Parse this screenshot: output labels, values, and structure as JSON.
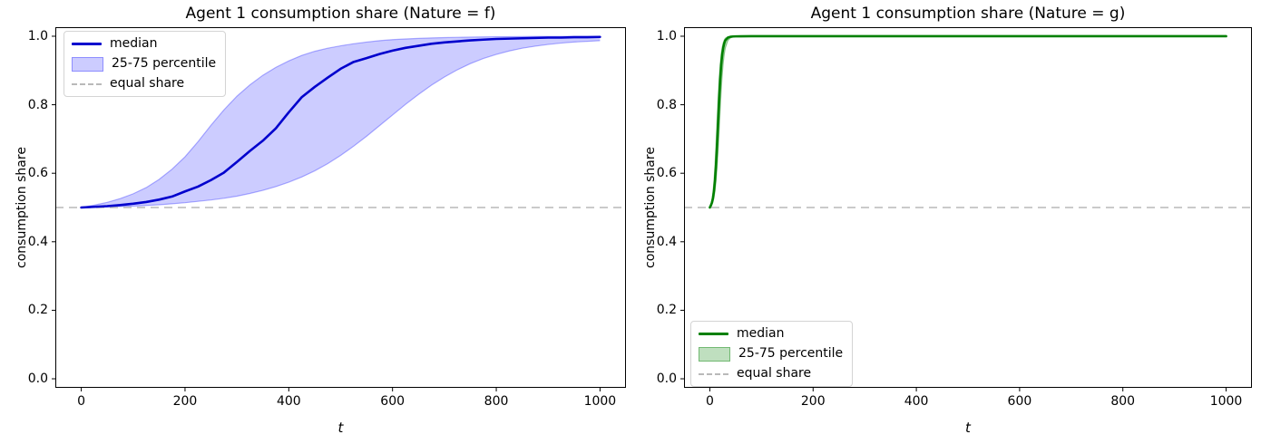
{
  "figure": {
    "background": "#ffffff"
  },
  "chart_data": [
    {
      "type": "line",
      "title": "Agent 1 consumption share (Nature = f)",
      "xlabel": "t",
      "ylabel": "consumption share",
      "xlim": [
        -50,
        1050
      ],
      "ylim": [
        -0.0264,
        1.0264
      ],
      "xticks": [
        0,
        200,
        400,
        600,
        800,
        1000
      ],
      "xtick_labels": [
        "0",
        "200",
        "400",
        "600",
        "800",
        "1000"
      ],
      "yticks": [
        0.0,
        0.2,
        0.4,
        0.6,
        0.8,
        1.0
      ],
      "ytick_labels": [
        "0.0",
        "0.2",
        "0.4",
        "0.6",
        "0.8",
        "1.0"
      ],
      "grid": false,
      "equal_share_value": 0.5,
      "legend": {
        "position": "upper-left",
        "entries": [
          {
            "label": "median",
            "type": "line"
          },
          {
            "label": "25-75 percentile",
            "type": "patch"
          },
          {
            "label": "equal share",
            "type": "dashed"
          }
        ]
      },
      "colors": {
        "median": "#0000cd",
        "band_fill": "rgba(0,0,255,0.2)",
        "band_edge": "rgba(0,0,255,0.3)",
        "equal_share": "#b9b9b9"
      },
      "series": {
        "t": [
          0,
          25,
          50,
          75,
          100,
          125,
          150,
          175,
          200,
          225,
          250,
          275,
          300,
          325,
          350,
          375,
          400,
          425,
          450,
          475,
          500,
          525,
          550,
          575,
          600,
          625,
          650,
          675,
          700,
          725,
          750,
          775,
          800,
          825,
          850,
          875,
          900,
          925,
          950,
          975,
          1000
        ],
        "median": [
          0.5,
          0.502,
          0.504,
          0.507,
          0.511,
          0.516,
          0.523,
          0.532,
          0.547,
          0.561,
          0.58,
          0.602,
          0.633,
          0.665,
          0.695,
          0.731,
          0.778,
          0.822,
          0.852,
          0.879,
          0.905,
          0.925,
          0.936,
          0.948,
          0.958,
          0.966,
          0.972,
          0.978,
          0.982,
          0.985,
          0.988,
          0.99,
          0.992,
          0.993,
          0.994,
          0.995,
          0.996,
          0.996,
          0.997,
          0.997,
          0.998
        ],
        "p75": [
          0.5,
          0.507,
          0.515,
          0.526,
          0.54,
          0.558,
          0.582,
          0.612,
          0.648,
          0.692,
          0.74,
          0.785,
          0.825,
          0.858,
          0.886,
          0.909,
          0.928,
          0.944,
          0.956,
          0.965,
          0.972,
          0.978,
          0.983,
          0.987,
          0.99,
          0.992,
          0.9937,
          0.995,
          0.996,
          0.9968,
          0.9975,
          0.998,
          0.9985,
          0.9988,
          0.999,
          0.9992,
          0.9994,
          0.9995,
          0.9996,
          0.9997,
          0.9998
        ],
        "p25": [
          0.5,
          0.501,
          0.502,
          0.503,
          0.504,
          0.506,
          0.508,
          0.511,
          0.514,
          0.518,
          0.522,
          0.527,
          0.533,
          0.541,
          0.55,
          0.561,
          0.574,
          0.589,
          0.607,
          0.628,
          0.652,
          0.679,
          0.708,
          0.739,
          0.77,
          0.801,
          0.83,
          0.857,
          0.881,
          0.902,
          0.92,
          0.935,
          0.947,
          0.957,
          0.965,
          0.971,
          0.976,
          0.98,
          0.983,
          0.985,
          0.987
        ]
      }
    },
    {
      "type": "line",
      "title": "Agent 1 consumption share (Nature = g)",
      "xlabel": "t",
      "ylabel": "consumption share",
      "xlim": [
        -50,
        1050
      ],
      "ylim": [
        -0.0264,
        1.0264
      ],
      "xticks": [
        0,
        200,
        400,
        600,
        800,
        1000
      ],
      "xtick_labels": [
        "0",
        "200",
        "400",
        "600",
        "800",
        "1000"
      ],
      "yticks": [
        0.0,
        0.2,
        0.4,
        0.6,
        0.8,
        1.0
      ],
      "ytick_labels": [
        "0.0",
        "0.2",
        "0.4",
        "0.6",
        "0.8",
        "1.0"
      ],
      "grid": false,
      "equal_share_value": 0.5,
      "legend": {
        "position": "lower-left",
        "entries": [
          {
            "label": "median",
            "type": "line"
          },
          {
            "label": "25-75 percentile",
            "type": "patch"
          },
          {
            "label": "equal share",
            "type": "dashed"
          }
        ]
      },
      "colors": {
        "median": "#008000",
        "band_fill": "rgba(0,128,0,0.25)",
        "band_edge": "rgba(0,128,0,0.4)",
        "equal_share": "#b9b9b9"
      },
      "series": {
        "t": [
          0,
          2,
          4,
          6,
          8,
          10,
          12,
          14,
          16,
          18,
          20,
          22,
          24,
          26,
          28,
          30,
          35,
          40,
          45,
          50,
          60,
          80,
          100,
          150,
          200,
          300,
          400,
          500,
          600,
          700,
          800,
          900,
          1000
        ],
        "median": [
          0.5,
          0.506,
          0.514,
          0.527,
          0.548,
          0.58,
          0.625,
          0.683,
          0.748,
          0.815,
          0.873,
          0.917,
          0.947,
          0.967,
          0.98,
          0.988,
          0.996,
          0.9985,
          0.9993,
          0.9996,
          0.9999,
          1.0,
          1.0,
          1.0,
          1.0,
          1.0,
          1.0,
          1.0,
          1.0,
          1.0,
          1.0,
          1.0,
          1.0
        ],
        "p75": [
          0.5,
          0.509,
          0.522,
          0.543,
          0.576,
          0.623,
          0.684,
          0.752,
          0.818,
          0.874,
          0.917,
          0.948,
          0.968,
          0.981,
          0.989,
          0.994,
          0.998,
          0.9995,
          0.9998,
          0.9999,
          1.0,
          1.0,
          1.0,
          1.0,
          1.0,
          1.0,
          1.0,
          1.0,
          1.0,
          1.0,
          1.0,
          1.0,
          1.0
        ],
        "p25": [
          0.5,
          0.503,
          0.508,
          0.516,
          0.529,
          0.549,
          0.578,
          0.618,
          0.668,
          0.726,
          0.787,
          0.843,
          0.889,
          0.924,
          0.949,
          0.966,
          0.988,
          0.995,
          0.998,
          0.999,
          0.9995,
          1.0,
          1.0,
          1.0,
          1.0,
          1.0,
          1.0,
          1.0,
          1.0,
          1.0,
          1.0,
          1.0,
          1.0
        ]
      }
    }
  ]
}
